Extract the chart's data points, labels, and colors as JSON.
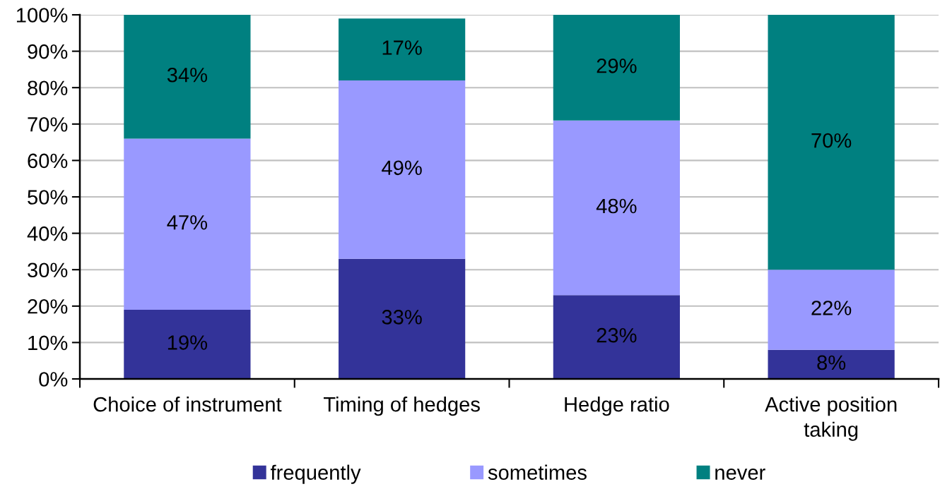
{
  "chart_data": {
    "type": "bar",
    "stacked": true,
    "categories": [
      "Choice of instrument",
      "Timing of hedges",
      "Hedge ratio",
      "Active position\ntaking"
    ],
    "series": [
      {
        "name": "frequently",
        "color": "#333399",
        "values": [
          19,
          33,
          23,
          8
        ],
        "value_labels": [
          "19%",
          "33%",
          "23%",
          "8%"
        ]
      },
      {
        "name": "sometimes",
        "color": "#9999ff",
        "values": [
          47,
          49,
          48,
          22
        ],
        "value_labels": [
          "47%",
          "49%",
          "48%",
          "22%"
        ]
      },
      {
        "name": "never",
        "color": "#008080",
        "values": [
          34,
          17,
          29,
          70
        ],
        "value_labels": [
          "34%",
          "17%",
          "29%",
          "70%"
        ]
      }
    ],
    "ylim": [
      0,
      100
    ],
    "yticks": [
      {
        "value": 0,
        "label": "0%"
      },
      {
        "value": 10,
        "label": "10%"
      },
      {
        "value": 20,
        "label": "20%"
      },
      {
        "value": 30,
        "label": "30%"
      },
      {
        "value": 40,
        "label": "40%"
      },
      {
        "value": 50,
        "label": "50%"
      },
      {
        "value": 60,
        "label": "60%"
      },
      {
        "value": 70,
        "label": "70%"
      },
      {
        "value": 80,
        "label": "80%"
      },
      {
        "value": 90,
        "label": "90%"
      },
      {
        "value": 100,
        "label": "100%"
      }
    ],
    "grid": "y",
    "legend": "bottom"
  }
}
